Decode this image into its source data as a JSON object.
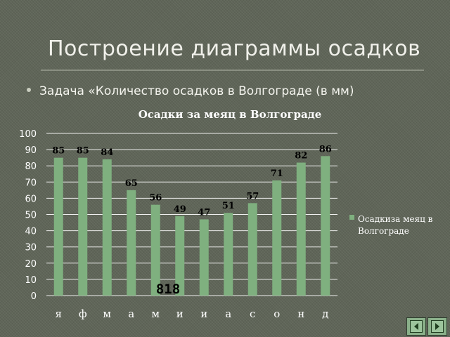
{
  "slide": {
    "title": "Построение диаграммы осадков",
    "bullet": "Задача «Количество осадков в Волгограде (в мм)"
  },
  "chart_data": {
    "type": "bar",
    "title": "Осадки за меяц в Волгограде",
    "categories": [
      "я",
      "ф",
      "м",
      "а",
      "м",
      "и",
      "и",
      "а",
      "с",
      "о",
      "н",
      "д"
    ],
    "series": [
      {
        "name": "Осадкиза меяц в Волгограде",
        "values": [
          85,
          85,
          84,
          65,
          56,
          49,
          47,
          51,
          57,
          71,
          82,
          86
        ]
      }
    ],
    "ylim": [
      0,
      100
    ],
    "yticks": [
      0,
      10,
      20,
      30,
      40,
      50,
      60,
      70,
      80,
      90,
      100
    ],
    "grid": true,
    "legend": "right",
    "total_label": "818",
    "bar_color": "#7fb07f"
  },
  "colors": {
    "background": "#5f6558",
    "gridline": "#ffffff",
    "text": "#ffffff",
    "label_text": "#000000"
  },
  "navigation": {
    "prev_icon": "previous-slide-icon",
    "next_icon": "next-slide-icon"
  }
}
